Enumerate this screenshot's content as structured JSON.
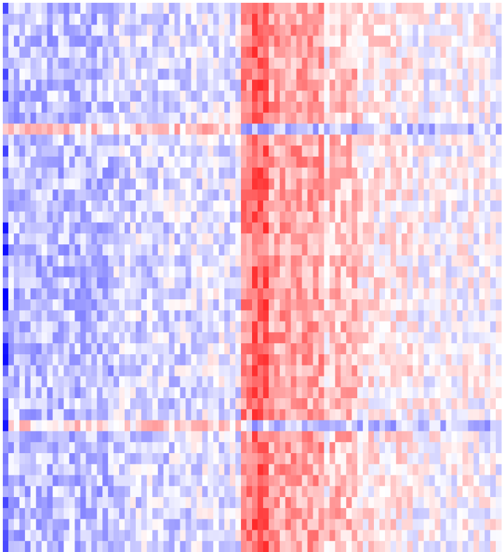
{
  "chart_data": {
    "type": "heatmap",
    "title": "",
    "xlabel": "",
    "ylabel": "",
    "colors": {
      "low": "#0000ff",
      "mid": "#ffffff",
      "high": "#ff0000"
    },
    "value_range": [
      -1,
      1
    ],
    "grid": false,
    "legend": "none",
    "n_cols": 90,
    "n_rows": 50,
    "column_profile_segments": [
      {
        "from_col": 0,
        "to_col": 1,
        "mean": -0.5
      },
      {
        "from_col": 1,
        "to_col": 20,
        "mean": -0.25
      },
      {
        "from_col": 20,
        "to_col": 34,
        "mean": -0.15
      },
      {
        "from_col": 34,
        "to_col": 43,
        "mean": -0.1
      },
      {
        "from_col": 43,
        "to_col": 45,
        "mean": 0.45
      },
      {
        "from_col": 45,
        "to_col": 48,
        "mean": 0.6
      },
      {
        "from_col": 48,
        "to_col": 58,
        "mean": 0.35
      },
      {
        "from_col": 58,
        "to_col": 59,
        "mean": 0.1
      },
      {
        "from_col": 59,
        "to_col": 64,
        "mean": 0.25
      },
      {
        "from_col": 64,
        "to_col": 74,
        "mean": 0.08
      },
      {
        "from_col": 74,
        "to_col": 90,
        "mean": 0.0
      }
    ],
    "anomalous_rows": [
      {
        "row": 11,
        "pattern": "inverted",
        "left_mean": 0.2,
        "right_mean": -0.25
      },
      {
        "row": 38,
        "pattern": "inverted",
        "left_mean": 0.15,
        "right_mean": -0.25
      }
    ],
    "strong_first_column_rows": [
      20,
      22,
      26,
      27,
      31,
      32,
      38
    ],
    "noise_amplitude": 0.12
  }
}
